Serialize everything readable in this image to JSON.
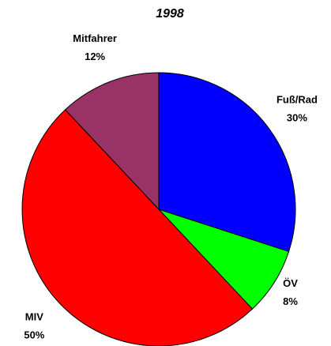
{
  "chart_data": {
    "type": "pie",
    "title": "1998",
    "categories": [
      "Fuß/Rad",
      "ÖV",
      "MIV",
      "Mitfahrer"
    ],
    "values": [
      30,
      8,
      50,
      12
    ],
    "value_labels": [
      "30%",
      "8%",
      "50%",
      "12%"
    ],
    "colors": [
      "#0000ff",
      "#00ff00",
      "#ff0000",
      "#993366"
    ]
  }
}
